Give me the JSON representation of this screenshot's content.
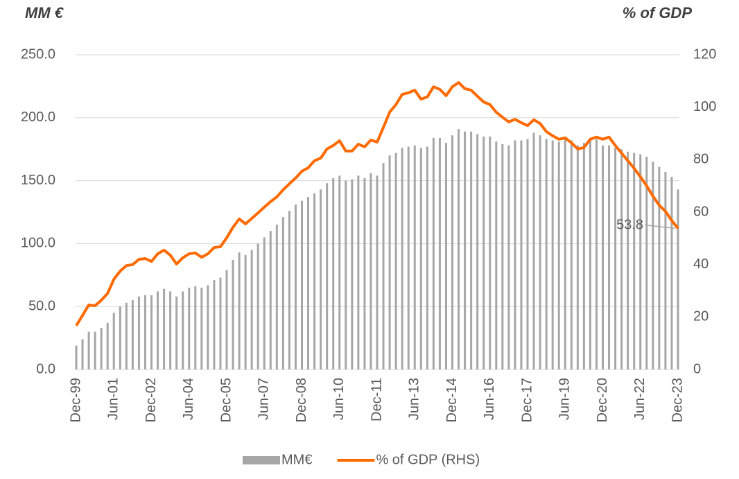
{
  "chart_data": {
    "type": "bar_line",
    "y_title": "MM €",
    "y2_title": "% of GDP",
    "categories": [
      "Dec-99",
      null,
      null,
      null,
      null,
      null,
      "Jun-01",
      null,
      null,
      null,
      null,
      null,
      "Dec-02",
      null,
      null,
      null,
      null,
      null,
      "Jun-04",
      null,
      null,
      null,
      null,
      null,
      "Dec-05",
      null,
      null,
      null,
      null,
      null,
      "Jun-07",
      null,
      null,
      null,
      null,
      null,
      "Dec-08",
      null,
      null,
      null,
      null,
      null,
      "Jun-10",
      null,
      null,
      null,
      null,
      null,
      "Dec-11",
      null,
      null,
      null,
      null,
      null,
      "Jun-13",
      null,
      null,
      null,
      null,
      null,
      "Dec-14",
      null,
      null,
      null,
      null,
      null,
      "Jun-16",
      null,
      null,
      null,
      null,
      null,
      "Dec-17",
      null,
      null,
      null,
      null,
      null,
      "Jun-19",
      null,
      null,
      null,
      null,
      null,
      "Dec-20",
      null,
      null,
      null,
      null,
      null,
      "Jun-22",
      null,
      null,
      null,
      null,
      null,
      "Dec-23"
    ],
    "series": [
      {
        "name": "MM€",
        "type": "bar",
        "axis": "y",
        "color": "#a6a6a6",
        "values": [
          19,
          24,
          30,
          30,
          33,
          37,
          45,
          50,
          53,
          55,
          58,
          59,
          59,
          62,
          64,
          62,
          58,
          62,
          65,
          66,
          65,
          67,
          71,
          73,
          79,
          87,
          93,
          91,
          95,
          100,
          105,
          110,
          115,
          121,
          126,
          131,
          134,
          137,
          140,
          143,
          148,
          152,
          154,
          150,
          151,
          154,
          152,
          156,
          154,
          164,
          170,
          172,
          176,
          177,
          178,
          176,
          177,
          184,
          184,
          180,
          186,
          191,
          189,
          189,
          187,
          185,
          185,
          181,
          179,
          178,
          182,
          182,
          183,
          188,
          186,
          183,
          182,
          181,
          183,
          182,
          178,
          180,
          182,
          183,
          178,
          178,
          176,
          175,
          173,
          172,
          171,
          169,
          165,
          161,
          157,
          153,
          143
        ]
      },
      {
        "name": "% of GDP (RHS)",
        "type": "line",
        "axis": "y2",
        "color": "#ff6a00",
        "values": [
          16.7,
          20.6,
          24.6,
          24.3,
          26.4,
          29,
          34.4,
          37.5,
          39.6,
          40,
          42,
          42.3,
          41.2,
          44.1,
          45.5,
          43.6,
          40.2,
          42.6,
          44.1,
          44.4,
          42.8,
          44.1,
          46.5,
          46.8,
          50.2,
          54.2,
          57.4,
          55.5,
          57.6,
          59.7,
          61.9,
          64,
          65.8,
          68.5,
          70.8,
          73,
          75.6,
          76.9,
          79.6,
          80.6,
          84.1,
          85.4,
          87.2,
          83.3,
          83.3,
          85.9,
          84.9,
          87.5,
          86.7,
          92.3,
          98.1,
          101,
          104.9,
          105.5,
          106.5,
          103.1,
          103.9,
          107.8,
          106.8,
          104.4,
          107.8,
          109.4,
          107.1,
          106.5,
          104.2,
          102,
          101,
          98.1,
          96.2,
          94.4,
          95.4,
          94.1,
          93,
          95.2,
          93.8,
          90.7,
          89.1,
          87.8,
          88.3,
          86.4,
          84.1,
          84.6,
          87.8,
          88.6,
          87.8,
          88.6,
          85.4,
          82.5,
          79.6,
          76.7,
          73.5,
          70,
          66.1,
          62.6,
          60.3,
          56.8,
          53.8
        ],
        "value_labels": [
          null,
          null,
          null,
          null,
          null,
          null,
          null,
          null,
          null,
          null,
          null,
          null,
          null,
          null,
          null,
          null,
          null,
          null,
          null,
          null,
          null,
          null,
          null,
          null,
          null,
          null,
          null,
          null,
          null,
          null,
          null,
          null,
          null,
          null,
          null,
          null,
          null,
          null,
          null,
          null,
          null,
          null,
          null,
          null,
          null,
          null,
          null,
          null,
          null,
          null,
          null,
          null,
          null,
          null,
          null,
          null,
          null,
          null,
          null,
          null,
          null,
          null,
          null,
          null,
          null,
          null,
          null,
          null,
          null,
          null,
          null,
          null,
          null,
          null,
          null,
          null,
          null,
          null,
          null,
          null,
          null,
          null,
          null,
          null,
          null,
          null,
          null,
          null,
          null,
          null,
          null,
          null,
          null,
          null,
          null,
          null,
          "53.8"
        ]
      }
    ],
    "ylim": [
      0,
      250
    ],
    "yticks": [
      {
        "value": 0,
        "label": "0.0"
      },
      {
        "value": 50,
        "label": "50.0"
      },
      {
        "value": 100,
        "label": "100.0"
      },
      {
        "value": 150,
        "label": "150.0"
      },
      {
        "value": 200,
        "label": "200.0"
      },
      {
        "value": 250,
        "label": "250.0"
      }
    ],
    "y2lim": [
      0,
      120
    ],
    "y2ticks": [
      0,
      20,
      40,
      60,
      80,
      100,
      120
    ],
    "grid": true,
    "legend": "bottom"
  }
}
